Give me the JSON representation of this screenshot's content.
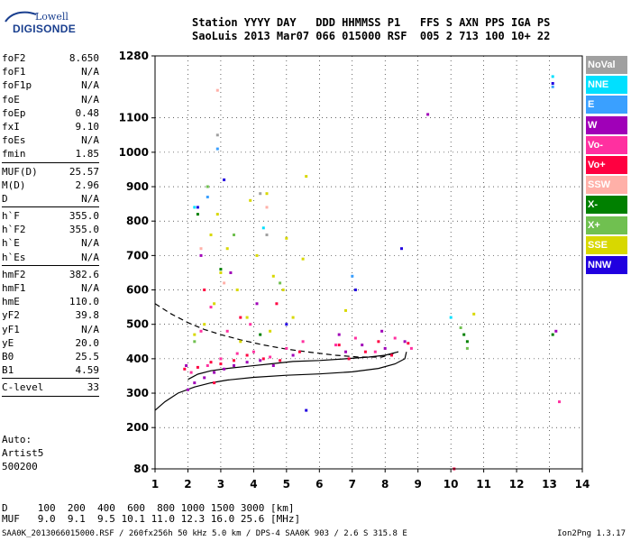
{
  "logo": {
    "line1": "Lowell",
    "line2": "DIGISONDE"
  },
  "header": {
    "line1": "Station YYYY DAY   DDD HHMMSS P1   FFS S AXN PPS IGA PS",
    "line2": "SaoLuis 2013 Mar07 066 015000 RSF  005 2 713 100 10+ 22"
  },
  "params": {
    "group1": [
      {
        "name": "foF2",
        "value": "8.650"
      },
      {
        "name": "foF1",
        "value": "N/A"
      },
      {
        "name": "foF1p",
        "value": "N/A"
      },
      {
        "name": "foE",
        "value": "N/A"
      },
      {
        "name": "foEp",
        "value": "0.48"
      },
      {
        "name": "fxI",
        "value": "9.10"
      },
      {
        "name": "foEs",
        "value": "N/A"
      },
      {
        "name": "fmin",
        "value": "1.85"
      }
    ],
    "group2": [
      {
        "name": "MUF(D)",
        "value": "25.57"
      },
      {
        "name": "M(D)",
        "value": "2.96"
      },
      {
        "name": "D",
        "value": "N/A"
      }
    ],
    "group3": [
      {
        "name": "h`F",
        "value": "355.0"
      },
      {
        "name": "h`F2",
        "value": "355.0"
      },
      {
        "name": "h`E",
        "value": "N/A"
      },
      {
        "name": "h`Es",
        "value": "N/A"
      }
    ],
    "group4": [
      {
        "name": "hmF2",
        "value": "382.6"
      },
      {
        "name": "hmF1",
        "value": "N/A"
      },
      {
        "name": "hmE",
        "value": "110.0"
      },
      {
        "name": "yF2",
        "value": "39.8"
      },
      {
        "name": "yF1",
        "value": "N/A"
      },
      {
        "name": "yE",
        "value": "20.0"
      },
      {
        "name": "B0",
        "value": "25.5"
      },
      {
        "name": "B1",
        "value": "4.59"
      }
    ],
    "group5": [
      {
        "name": "C-level",
        "value": "33"
      }
    ]
  },
  "auto": {
    "line1": "Auto:",
    "line2": "Artist5",
    "line3": "500200"
  },
  "legend": [
    {
      "label": "NoVal",
      "color": "#a0a0a0"
    },
    {
      "label": "NNE",
      "color": "#00e0ff"
    },
    {
      "label": "E",
      "color": "#3aa0ff"
    },
    {
      "label": "W",
      "color": "#a000b8"
    },
    {
      "label": "Vo-",
      "color": "#ff30a0"
    },
    {
      "label": "Vo+",
      "color": "#ff0040"
    },
    {
      "label": "SSW",
      "color": "#ffb0a8"
    },
    {
      "label": "X-",
      "color": "#008000"
    },
    {
      "label": "X+",
      "color": "#70c050"
    },
    {
      "label": "SSE",
      "color": "#d8d800"
    },
    {
      "label": "NNW",
      "color": "#2000e0"
    }
  ],
  "bottom": {
    "line1": "D     100  200  400  600  800 1000 1500 3000 [km]",
    "line2": "MUF   9.0  9.1  9.5 10.1 11.0 12.3 16.0 25.6 [MHz]"
  },
  "footer": {
    "left": "SAA0K_2013066015000.RSF / 260fx256h 50 kHz 5.0 km / DPS-4 SAA0K 903 / 2.6 S 315.8 E",
    "right": "Ion2Png 1.3.17"
  },
  "chart_data": {
    "type": "scatter",
    "title": "",
    "xlabel": "",
    "ylabel": "",
    "xlim": [
      1,
      14
    ],
    "ylim": [
      80,
      1280
    ],
    "x_ticks": [
      1,
      2,
      3,
      4,
      5,
      6,
      7,
      8,
      9,
      10,
      11,
      12,
      13,
      14
    ],
    "y_ticks": [
      80,
      200,
      300,
      400,
      500,
      600,
      700,
      800,
      900,
      1000,
      1100,
      1280
    ],
    "grid": true,
    "series": [
      {
        "name": "NoVal",
        "color": "#a0a0a0",
        "points": [
          [
            4.4,
            760
          ],
          [
            4.2,
            880
          ],
          [
            2.9,
            1050
          ]
        ]
      },
      {
        "name": "NNE",
        "color": "#00e0ff",
        "points": [
          [
            13.1,
            1220
          ],
          [
            2.2,
            840
          ],
          [
            10.0,
            520
          ],
          [
            4.3,
            780
          ]
        ]
      },
      {
        "name": "E",
        "color": "#3aa0ff",
        "points": [
          [
            13.1,
            1190
          ],
          [
            2.6,
            870
          ],
          [
            2.9,
            1010
          ],
          [
            7.0,
            640
          ]
        ]
      },
      {
        "name": "W",
        "color": "#a000b8",
        "points": [
          [
            2.0,
            310
          ],
          [
            2.2,
            330
          ],
          [
            2.5,
            345
          ],
          [
            2.8,
            360
          ],
          [
            3.1,
            370
          ],
          [
            3.4,
            380
          ],
          [
            3.8,
            390
          ],
          [
            4.2,
            395
          ],
          [
            4.6,
            380
          ],
          [
            5.2,
            410
          ],
          [
            6.8,
            420
          ],
          [
            7.3,
            440
          ],
          [
            8.0,
            430
          ],
          [
            8.6,
            450
          ],
          [
            9.3,
            1110
          ],
          [
            13.2,
            480
          ],
          [
            2.4,
            700
          ],
          [
            3.3,
            650
          ],
          [
            4.1,
            560
          ],
          [
            1.95,
            380
          ],
          [
            6.6,
            470
          ],
          [
            7.9,
            480
          ]
        ]
      },
      {
        "name": "Vo-",
        "color": "#ff30a0",
        "points": [
          [
            2.1,
            360
          ],
          [
            2.6,
            380
          ],
          [
            3.0,
            400
          ],
          [
            3.5,
            415
          ],
          [
            4.0,
            420
          ],
          [
            4.5,
            405
          ],
          [
            5.0,
            430
          ],
          [
            5.5,
            450
          ],
          [
            6.5,
            440
          ],
          [
            7.1,
            460
          ],
          [
            7.7,
            420
          ],
          [
            8.3,
            460
          ],
          [
            8.8,
            430
          ],
          [
            2.4,
            480
          ],
          [
            2.7,
            550
          ],
          [
            3.2,
            480
          ],
          [
            3.9,
            500
          ],
          [
            13.3,
            275
          ]
        ]
      },
      {
        "name": "Vo+",
        "color": "#ff0040",
        "points": [
          [
            1.9,
            370
          ],
          [
            2.3,
            375
          ],
          [
            2.7,
            390
          ],
          [
            3.0,
            385
          ],
          [
            3.4,
            395
          ],
          [
            3.8,
            410
          ],
          [
            4.3,
            400
          ],
          [
            4.8,
            395
          ],
          [
            5.4,
            420
          ],
          [
            6.6,
            440
          ],
          [
            6.9,
            400
          ],
          [
            7.4,
            420
          ],
          [
            7.8,
            450
          ],
          [
            8.2,
            410
          ],
          [
            8.7,
            445
          ],
          [
            2.5,
            600
          ],
          [
            3.6,
            520
          ],
          [
            4.7,
            560
          ],
          [
            10.1,
            80
          ],
          [
            2.8,
            330
          ]
        ]
      },
      {
        "name": "SSW",
        "color": "#ffb0a8",
        "points": [
          [
            2.4,
            720
          ],
          [
            3.1,
            620
          ],
          [
            2.9,
            1180
          ],
          [
            4.4,
            840
          ]
        ]
      },
      {
        "name": "X-",
        "color": "#008000",
        "points": [
          [
            10.4,
            470
          ],
          [
            10.5,
            450
          ],
          [
            13.1,
            470
          ],
          [
            2.3,
            820
          ],
          [
            3.0,
            660
          ],
          [
            4.2,
            470
          ]
        ]
      },
      {
        "name": "X+",
        "color": "#70c050",
        "points": [
          [
            10.5,
            430
          ],
          [
            10.3,
            490
          ],
          [
            2.6,
            900
          ],
          [
            3.4,
            760
          ],
          [
            4.8,
            620
          ],
          [
            2.2,
            450
          ]
        ]
      },
      {
        "name": "SSE",
        "color": "#d8d800",
        "points": [
          [
            2.2,
            470
          ],
          [
            2.5,
            500
          ],
          [
            2.8,
            560
          ],
          [
            3.0,
            650
          ],
          [
            3.2,
            720
          ],
          [
            3.5,
            600
          ],
          [
            3.8,
            520
          ],
          [
            4.1,
            700
          ],
          [
            4.4,
            880
          ],
          [
            4.6,
            640
          ],
          [
            4.9,
            600
          ],
          [
            5.2,
            520
          ],
          [
            5.5,
            690
          ],
          [
            2.7,
            760
          ],
          [
            3.9,
            860
          ],
          [
            5.6,
            930
          ],
          [
            2.9,
            820
          ],
          [
            4.5,
            480
          ],
          [
            6.8,
            540
          ],
          [
            10.7,
            530
          ],
          [
            3.6,
            450
          ],
          [
            5.0,
            750
          ]
        ]
      },
      {
        "name": "NNW",
        "color": "#2000e0",
        "points": [
          [
            13.1,
            1200
          ],
          [
            2.3,
            840
          ],
          [
            7.1,
            600
          ],
          [
            8.5,
            720
          ],
          [
            5.0,
            500
          ],
          [
            3.1,
            920
          ],
          [
            5.6,
            250
          ]
        ]
      }
    ],
    "curves": [
      {
        "name": "profile-low",
        "color": "#000000",
        "style": "solid",
        "points": [
          [
            1.0,
            250
          ],
          [
            1.3,
            275
          ],
          [
            1.7,
            300
          ],
          [
            2.2,
            318
          ],
          [
            2.7,
            330
          ],
          [
            3.2,
            338
          ],
          [
            4.0,
            346
          ],
          [
            5.0,
            352
          ],
          [
            6.0,
            356
          ],
          [
            7.0,
            362
          ],
          [
            7.8,
            372
          ],
          [
            8.3,
            385
          ],
          [
            8.6,
            400
          ],
          [
            8.65,
            420
          ]
        ]
      },
      {
        "name": "profile-high",
        "color": "#000000",
        "style": "solid",
        "points": [
          [
            2.0,
            340
          ],
          [
            2.3,
            355
          ],
          [
            2.7,
            365
          ],
          [
            3.2,
            372
          ],
          [
            3.8,
            378
          ],
          [
            4.5,
            385
          ],
          [
            5.2,
            392
          ],
          [
            6.0,
            395
          ],
          [
            6.8,
            400
          ],
          [
            7.5,
            405
          ],
          [
            8.0,
            410
          ],
          [
            8.4,
            420
          ]
        ]
      },
      {
        "name": "trace-dashed",
        "color": "#000000",
        "style": "dashed",
        "points": [
          [
            1.0,
            560
          ],
          [
            1.5,
            530
          ],
          [
            2.0,
            505
          ],
          [
            2.5,
            485
          ],
          [
            3.0,
            470
          ],
          [
            3.6,
            455
          ],
          [
            4.3,
            440
          ],
          [
            5.0,
            428
          ],
          [
            5.8,
            418
          ],
          [
            6.5,
            410
          ],
          [
            7.2,
            405
          ],
          [
            7.9,
            405
          ],
          [
            8.4,
            420
          ]
        ]
      }
    ]
  }
}
